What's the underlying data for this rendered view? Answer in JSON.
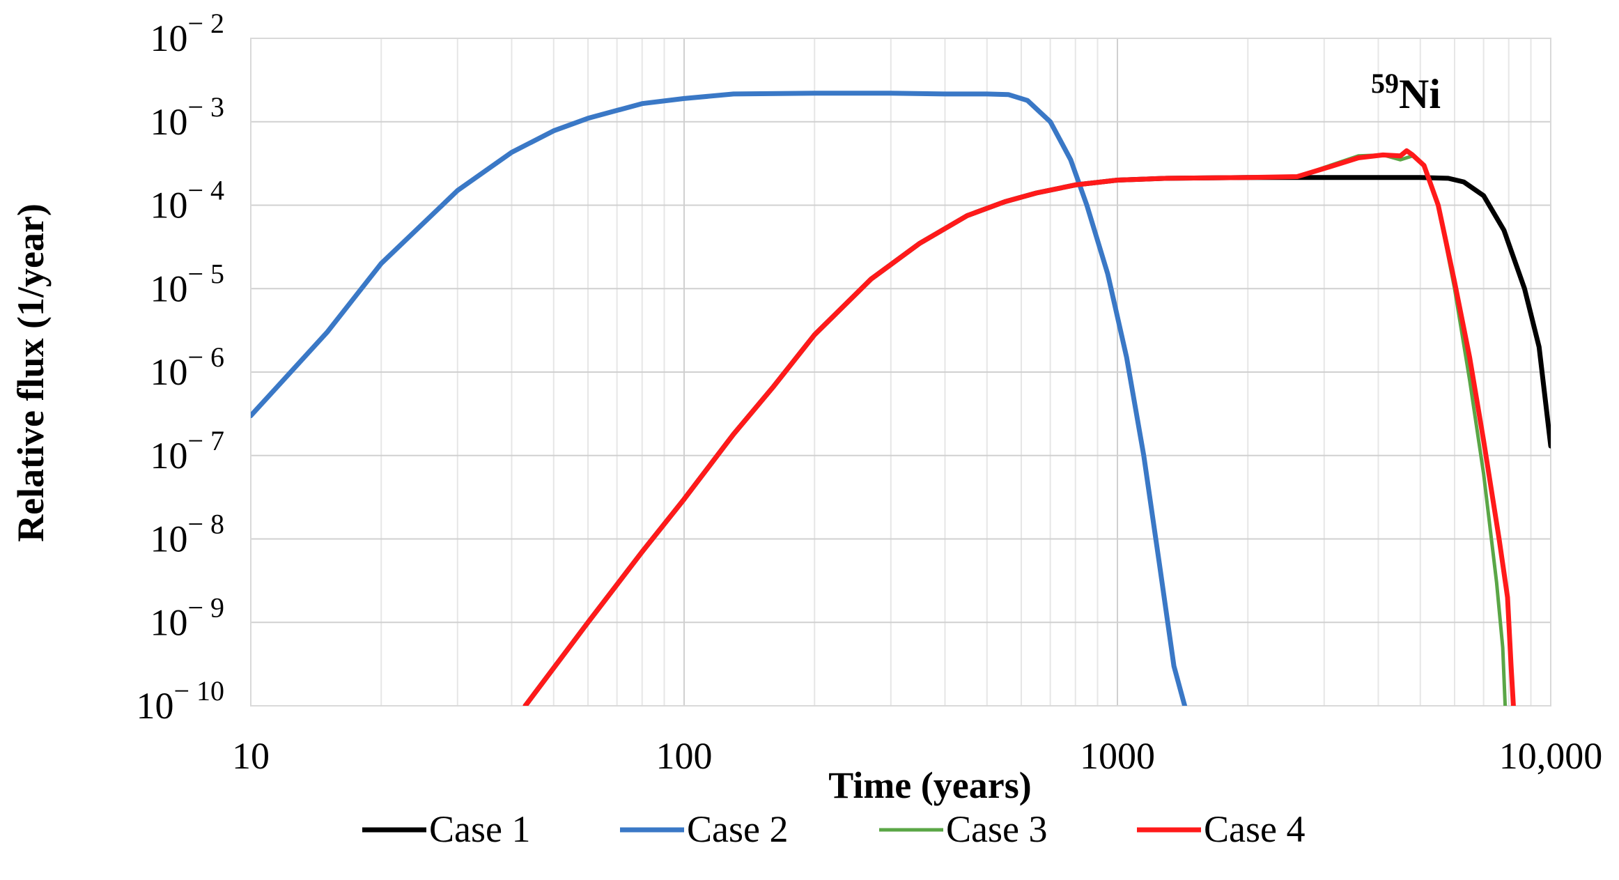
{
  "chart_data": {
    "type": "line",
    "title": "",
    "annotation": {
      "mass_number": "59",
      "element": "Ni"
    },
    "xlabel": "Time (years)",
    "ylabel": "Relative flux (1/year)",
    "xscale": "log",
    "yscale": "log",
    "xlim": [
      10,
      10000
    ],
    "ylim": [
      1e-10,
      0.01
    ],
    "grid": true,
    "x_ticks": [
      {
        "value": 10,
        "label": "10"
      },
      {
        "value": 100,
        "label": "100"
      },
      {
        "value": 1000,
        "label": "1000"
      },
      {
        "value": 10000,
        "label": "10,000"
      }
    ],
    "y_ticks": [
      {
        "value": 0.01,
        "base": "10",
        "exp": "− 2"
      },
      {
        "value": 0.001,
        "base": "10",
        "exp": "− 3"
      },
      {
        "value": 0.0001,
        "base": "10",
        "exp": "− 4"
      },
      {
        "value": 1e-05,
        "base": "10",
        "exp": "− 5"
      },
      {
        "value": 1e-06,
        "base": "10",
        "exp": "− 6"
      },
      {
        "value": 1e-07,
        "base": "10",
        "exp": "− 7"
      },
      {
        "value": 1e-08,
        "base": "10",
        "exp": "− 8"
      },
      {
        "value": 1e-09,
        "base": "10",
        "exp": "− 9"
      },
      {
        "value": 1e-10,
        "base": "10",
        "exp": "− 10"
      }
    ],
    "legend_position": "bottom",
    "series": [
      {
        "name": "Case 1",
        "color": "#000000",
        "points": [
          [
            43,
            1e-10
          ],
          [
            60,
            1e-09
          ],
          [
            80,
            7e-09
          ],
          [
            100,
            3e-08
          ],
          [
            130,
            1.8e-07
          ],
          [
            160,
            6.5e-07
          ],
          [
            200,
            2.8e-06
          ],
          [
            270,
            1.3e-05
          ],
          [
            350,
            3.5e-05
          ],
          [
            450,
            7.5e-05
          ],
          [
            550,
            0.00011
          ],
          [
            650,
            0.00014
          ],
          [
            800,
            0.000175
          ],
          [
            1000,
            0.0002
          ],
          [
            1300,
            0.00021
          ],
          [
            2000,
            0.000215
          ],
          [
            3000,
            0.000215
          ],
          [
            4000,
            0.000215
          ],
          [
            5000,
            0.000215
          ],
          [
            5800,
            0.00021
          ],
          [
            6300,
            0.00019
          ],
          [
            7000,
            0.00013
          ],
          [
            7800,
            5e-05
          ],
          [
            8700,
            1e-05
          ],
          [
            9400,
            2e-06
          ],
          [
            10000,
            1.3e-07
          ]
        ]
      },
      {
        "name": "Case 2",
        "color": "#3a78c6",
        "points": [
          [
            10,
            3e-07
          ],
          [
            15,
            3e-06
          ],
          [
            20,
            2e-05
          ],
          [
            30,
            0.00015
          ],
          [
            40,
            0.00043
          ],
          [
            50,
            0.00078
          ],
          [
            60,
            0.0011
          ],
          [
            80,
            0.00165
          ],
          [
            100,
            0.0019
          ],
          [
            130,
            0.00215
          ],
          [
            200,
            0.0022
          ],
          [
            300,
            0.0022
          ],
          [
            400,
            0.00215
          ],
          [
            500,
            0.00215
          ],
          [
            560,
            0.00212
          ],
          [
            620,
            0.0018
          ],
          [
            700,
            0.001
          ],
          [
            780,
            0.00035
          ],
          [
            850,
            0.0001
          ],
          [
            950,
            1.5e-05
          ],
          [
            1050,
            1.5e-06
          ],
          [
            1150,
            1e-07
          ],
          [
            1250,
            5e-09
          ],
          [
            1350,
            3e-10
          ],
          [
            1430,
            1e-10
          ]
        ]
      },
      {
        "name": "Case 3",
        "color": "#5aa646",
        "points": [
          [
            43,
            1e-10
          ],
          [
            60,
            1e-09
          ],
          [
            80,
            7e-09
          ],
          [
            100,
            3e-08
          ],
          [
            130,
            1.8e-07
          ],
          [
            160,
            6.5e-07
          ],
          [
            200,
            2.8e-06
          ],
          [
            270,
            1.3e-05
          ],
          [
            350,
            3.5e-05
          ],
          [
            450,
            7.5e-05
          ],
          [
            550,
            0.00011
          ],
          [
            650,
            0.00014
          ],
          [
            800,
            0.000175
          ],
          [
            1000,
            0.0002
          ],
          [
            1300,
            0.00021
          ],
          [
            2000,
            0.000215
          ],
          [
            2600,
            0.00022
          ],
          [
            3100,
            0.0003
          ],
          [
            3600,
            0.00039
          ],
          [
            4100,
            0.0004
          ],
          [
            4500,
            0.00035
          ],
          [
            4800,
            0.00039
          ],
          [
            5100,
            0.0003
          ],
          [
            5500,
            0.0001
          ],
          [
            6000,
            1e-05
          ],
          [
            6500,
            8e-07
          ],
          [
            7000,
            6e-08
          ],
          [
            7500,
            3e-09
          ],
          [
            7750,
            5e-10
          ],
          [
            7850,
            1e-10
          ]
        ]
      },
      {
        "name": "Case 4",
        "color": "#ff1a1a",
        "points": [
          [
            43,
            1e-10
          ],
          [
            60,
            1e-09
          ],
          [
            80,
            7e-09
          ],
          [
            100,
            3e-08
          ],
          [
            130,
            1.8e-07
          ],
          [
            160,
            6.5e-07
          ],
          [
            200,
            2.8e-06
          ],
          [
            270,
            1.3e-05
          ],
          [
            350,
            3.5e-05
          ],
          [
            450,
            7.5e-05
          ],
          [
            550,
            0.00011
          ],
          [
            650,
            0.00014
          ],
          [
            800,
            0.000175
          ],
          [
            1000,
            0.0002
          ],
          [
            1300,
            0.00021
          ],
          [
            2000,
            0.000215
          ],
          [
            2600,
            0.00022
          ],
          [
            3100,
            0.00029
          ],
          [
            3600,
            0.00037
          ],
          [
            4100,
            0.0004
          ],
          [
            4500,
            0.00039
          ],
          [
            4650,
            0.00045
          ],
          [
            4800,
            0.0004
          ],
          [
            5100,
            0.0003
          ],
          [
            5500,
            0.0001
          ],
          [
            6000,
            1.2e-05
          ],
          [
            6500,
            1.5e-06
          ],
          [
            7000,
            1.5e-07
          ],
          [
            7600,
            1e-08
          ],
          [
            7950,
            2e-09
          ],
          [
            8100,
            3e-10
          ],
          [
            8200,
            1e-10
          ]
        ]
      }
    ]
  }
}
